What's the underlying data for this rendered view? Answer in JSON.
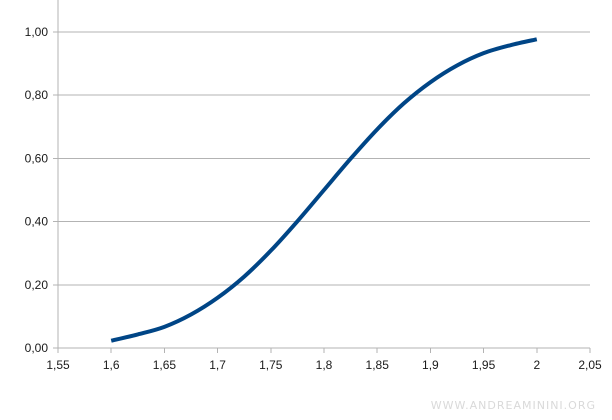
{
  "chart_data": {
    "type": "line",
    "x": [
      1.6,
      1.625,
      1.65,
      1.675,
      1.7,
      1.725,
      1.75,
      1.775,
      1.8,
      1.825,
      1.85,
      1.875,
      1.9,
      1.925,
      1.95,
      1.975,
      2.0
    ],
    "series": [
      {
        "values": [
          0.023,
          0.043,
          0.067,
          0.106,
          0.159,
          0.226,
          0.308,
          0.401,
          0.5,
          0.599,
          0.692,
          0.774,
          0.841,
          0.894,
          0.933,
          0.958,
          0.977
        ],
        "color": "#004586"
      }
    ],
    "xlim": [
      1.55,
      2.05
    ],
    "ylim": [
      0,
      1.0
    ],
    "x_ticks": [
      "1,55",
      "1,6",
      "1,65",
      "1,7",
      "1,75",
      "1,8",
      "1,85",
      "1,9",
      "1,95",
      "2",
      "2,05"
    ],
    "y_ticks": [
      "0,00",
      "0,20",
      "0,40",
      "0,60",
      "0,80",
      "1,00"
    ],
    "grid": "horizontal",
    "title": "",
    "xlabel": "",
    "ylabel": ""
  },
  "watermark": "WWW.ANDREAMININI.ORG",
  "colors": {
    "line": "#004586",
    "grid": "#b3b3b3",
    "axis": "#b3b3b3"
  }
}
